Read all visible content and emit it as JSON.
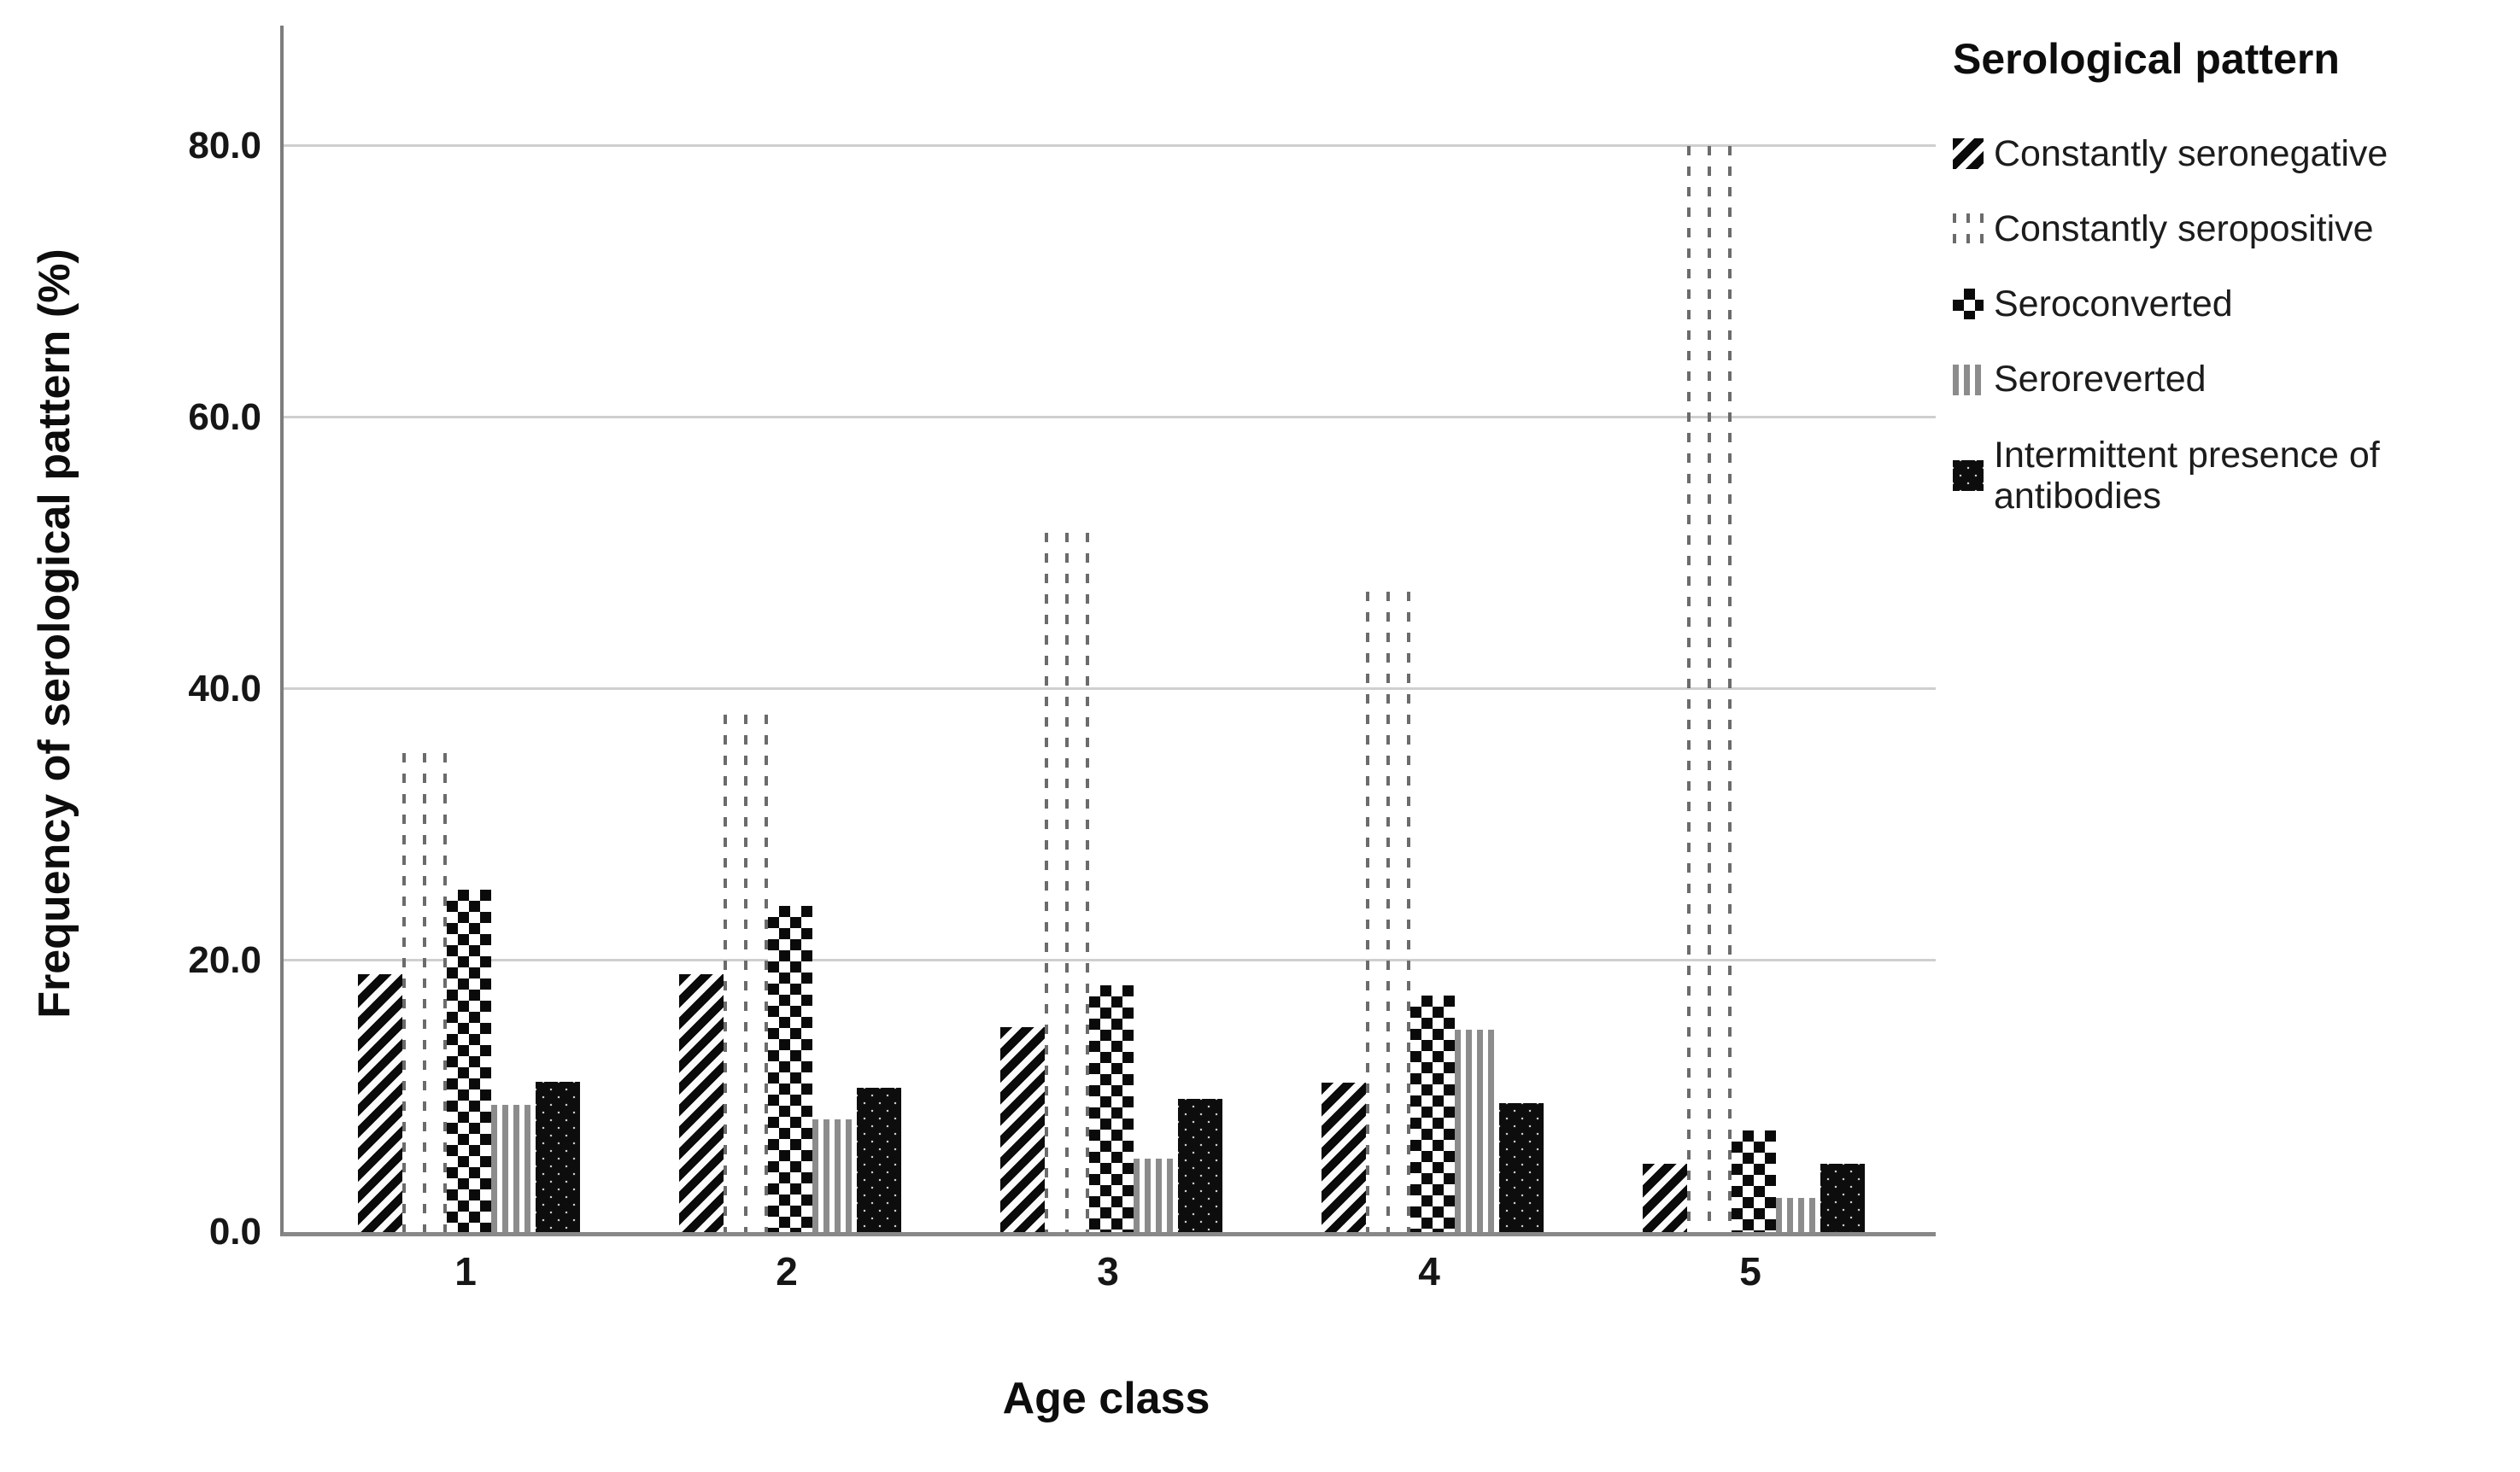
{
  "chart_data": {
    "type": "bar",
    "title": "",
    "xlabel": "Age class",
    "ylabel": "Frequency of serological pattern (%)",
    "legend_title": "Serological pattern",
    "legend_position": "right",
    "grid": "horizontal",
    "ylim": [
      0,
      88
    ],
    "y_ticks": [
      "0.0",
      "20.0",
      "40.0",
      "60.0",
      "80.0"
    ],
    "categories": [
      "1",
      "2",
      "3",
      "4",
      "5"
    ],
    "series": [
      {
        "name": "Constantly seronegative",
        "pattern": "diagonal-stripes",
        "values": [
          19.0,
          19.0,
          15.1,
          11.0,
          5.0
        ]
      },
      {
        "name": "Constantly seropositive",
        "pattern": "dotted-outline",
        "values": [
          35.3,
          38.1,
          51.5,
          47.2,
          80.0
        ]
      },
      {
        "name": "Seroconverted",
        "pattern": "checkerboard",
        "values": [
          25.2,
          24.0,
          18.2,
          17.4,
          7.5
        ]
      },
      {
        "name": "Seroreverted",
        "pattern": "gray-vertical-lines",
        "values": [
          9.4,
          8.3,
          5.4,
          14.9,
          2.5
        ]
      },
      {
        "name": "Intermittent presence of antibodies",
        "pattern": "fine-checker",
        "values": [
          11.1,
          10.6,
          9.8,
          9.5,
          5.0
        ]
      }
    ]
  },
  "colors": {
    "background": "#ffffff",
    "axis_line": "#7d7d7d",
    "gridline": "#cfcfcf",
    "bar_black": "#0a0a0a",
    "bar_gray": "#8c8c8c",
    "text": "#111111"
  }
}
